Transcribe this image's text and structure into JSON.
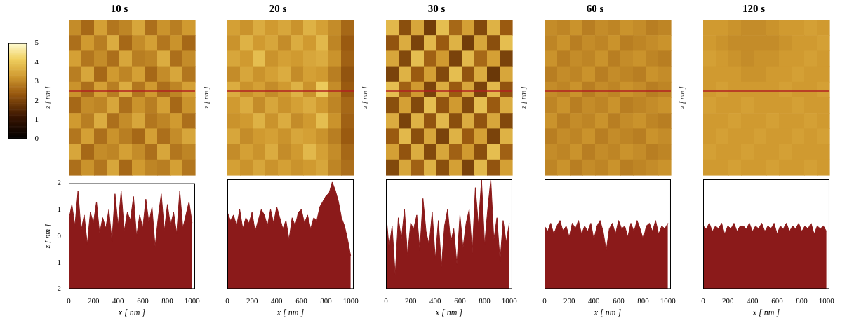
{
  "chart_data": [
    {
      "type": "heatmap",
      "title": "10 s",
      "y_label": "z [ nm ]",
      "tick_labels": false,
      "profile_row": 4.6,
      "color": "#b22222",
      "colorbar": {
        "range": [
          0,
          5
        ],
        "ticks": [
          0,
          1,
          2,
          3,
          4,
          5
        ]
      },
      "cells": [
        [
          3.1,
          2.6,
          3.4,
          2.8,
          3.0,
          3.5,
          2.7,
          3.2,
          2.9,
          3.3
        ],
        [
          2.7,
          3.3,
          2.9,
          3.6,
          2.6,
          3.1,
          3.4,
          2.8,
          3.2,
          2.6
        ],
        [
          3.4,
          2.8,
          3.1,
          2.7,
          3.5,
          2.9,
          3.0,
          3.6,
          2.7,
          3.1
        ],
        [
          2.9,
          3.5,
          2.6,
          3.3,
          3.0,
          3.4,
          2.6,
          3.1,
          3.5,
          2.8
        ],
        [
          3.2,
          2.7,
          3.4,
          2.9,
          3.6,
          2.8,
          3.3,
          2.7,
          3.0,
          3.4
        ],
        [
          2.6,
          3.1,
          3.0,
          3.5,
          2.7,
          3.2,
          2.9,
          3.4,
          2.6,
          3.2
        ],
        [
          3.3,
          2.9,
          3.6,
          2.7,
          3.1,
          3.5,
          2.8,
          3.0,
          3.3,
          2.7
        ],
        [
          2.8,
          3.4,
          2.7,
          3.2,
          2.9,
          2.6,
          3.4,
          2.7,
          3.1,
          3.5
        ],
        [
          3.5,
          2.6,
          3.1,
          3.0,
          3.4,
          3.1,
          2.7,
          3.5,
          2.8,
          3.0
        ],
        [
          2.7,
          3.2,
          2.8,
          3.5,
          2.6,
          3.3,
          3.0,
          2.9,
          3.4,
          2.8
        ]
      ]
    },
    {
      "type": "heatmap",
      "title": "20 s",
      "y_label": "z [ nm ]",
      "tick_labels": false,
      "profile_row": 4.6,
      "color": "#b22222",
      "cells": [
        [
          3.4,
          3.2,
          3.6,
          3.3,
          3.5,
          3.2,
          3.7,
          3.4,
          3.1,
          2.6
        ],
        [
          3.2,
          3.7,
          3.3,
          3.5,
          3.1,
          3.6,
          3.3,
          3.8,
          3.0,
          2.4
        ],
        [
          3.5,
          3.3,
          3.9,
          3.2,
          3.4,
          3.3,
          3.5,
          3.6,
          3.2,
          2.5
        ],
        [
          3.1,
          3.5,
          3.2,
          3.4,
          3.6,
          3.1,
          3.4,
          3.3,
          2.9,
          2.3
        ],
        [
          3.6,
          3.2,
          3.4,
          3.1,
          3.3,
          3.7,
          3.2,
          4.1,
          3.1,
          2.4
        ],
        [
          3.3,
          3.6,
          3.1,
          3.5,
          3.2,
          3.4,
          3.6,
          3.3,
          3.0,
          2.6
        ],
        [
          3.2,
          3.3,
          3.7,
          3.2,
          3.6,
          3.1,
          3.3,
          3.9,
          3.2,
          2.5
        ],
        [
          3.5,
          3.1,
          3.3,
          3.4,
          3.2,
          3.5,
          3.4,
          3.2,
          2.9,
          2.4
        ],
        [
          3.1,
          3.4,
          3.2,
          3.6,
          3.1,
          3.3,
          3.8,
          3.4,
          3.1,
          2.6
        ],
        [
          3.4,
          3.2,
          3.5,
          3.2,
          3.4,
          3.2,
          3.3,
          3.5,
          3.0,
          2.7
        ]
      ]
    },
    {
      "type": "heatmap",
      "title": "30 s",
      "y_label": "z [ nm ]",
      "tick_labels": false,
      "profile_row": 4.6,
      "color": "#b22222",
      "cells": [
        [
          3.8,
          2.2,
          3.5,
          1.9,
          3.9,
          2.6,
          3.4,
          2.1,
          3.7,
          2.4
        ],
        [
          2.3,
          3.6,
          2.0,
          3.8,
          2.4,
          3.7,
          1.9,
          3.5,
          2.2,
          3.9
        ],
        [
          3.5,
          2.1,
          3.9,
          2.5,
          3.3,
          2.0,
          3.8,
          2.6,
          3.4,
          2.0
        ],
        [
          2.0,
          3.7,
          2.4,
          3.4,
          2.1,
          3.9,
          2.3,
          3.6,
          1.8,
          3.5
        ],
        [
          3.9,
          2.5,
          3.3,
          2.0,
          3.6,
          2.4,
          3.5,
          2.0,
          3.8,
          2.3
        ],
        [
          2.2,
          3.4,
          2.1,
          3.9,
          2.3,
          3.3,
          2.1,
          3.9,
          2.4,
          3.6
        ],
        [
          3.6,
          2.0,
          3.7,
          2.3,
          3.8,
          2.2,
          3.6,
          2.3,
          3.5,
          2.1
        ],
        [
          2.4,
          3.8,
          2.2,
          3.5,
          2.0,
          3.7,
          2.4,
          3.4,
          2.0,
          3.7
        ],
        [
          3.4,
          2.3,
          3.6,
          2.1,
          3.5,
          2.5,
          3.3,
          2.2,
          3.9,
          2.5
        ],
        [
          2.1,
          3.5,
          2.5,
          3.7,
          2.2,
          3.4,
          2.0,
          3.8,
          2.3,
          3.4
        ]
      ]
    },
    {
      "type": "heatmap",
      "title": "60 s",
      "y_label": "z [ nm ]",
      "tick_labels": false,
      "profile_row": 4.6,
      "color": "#b22222",
      "cells": [
        [
          3.1,
          3.0,
          3.2,
          2.9,
          3.1,
          3.0,
          3.2,
          3.1,
          2.9,
          3.0
        ],
        [
          3.0,
          3.2,
          2.9,
          3.1,
          3.0,
          3.2,
          2.9,
          3.0,
          3.1,
          3.2
        ],
        [
          3.2,
          2.9,
          3.1,
          3.0,
          3.2,
          2.9,
          3.1,
          3.2,
          3.0,
          2.9
        ],
        [
          2.9,
          3.1,
          3.0,
          3.2,
          2.9,
          3.1,
          3.0,
          2.9,
          3.2,
          3.1
        ],
        [
          3.1,
          3.0,
          3.2,
          2.9,
          3.1,
          3.0,
          3.2,
          3.1,
          2.9,
          3.0
        ],
        [
          3.0,
          3.2,
          2.9,
          3.1,
          3.0,
          3.2,
          2.9,
          3.0,
          3.1,
          3.2
        ],
        [
          3.2,
          2.9,
          3.1,
          3.0,
          3.2,
          2.9,
          3.1,
          3.2,
          3.0,
          2.9
        ],
        [
          2.9,
          3.1,
          3.0,
          3.2,
          2.9,
          3.1,
          3.0,
          2.9,
          3.2,
          3.1
        ],
        [
          3.1,
          3.0,
          3.2,
          2.9,
          3.1,
          3.0,
          3.2,
          3.1,
          2.9,
          3.0
        ],
        [
          3.0,
          3.2,
          2.9,
          3.1,
          3.0,
          3.2,
          2.9,
          3.0,
          3.1,
          3.2
        ]
      ]
    },
    {
      "type": "heatmap",
      "title": "120 s",
      "y_label": "z [ nm ]",
      "tick_labels": false,
      "profile_row": 4.6,
      "color": "#b22222",
      "cells": [
        [
          3.3,
          3.3,
          3.2,
          3.1,
          3.1,
          3.2,
          3.3,
          3.3,
          3.4,
          3.3
        ],
        [
          3.3,
          3.2,
          3.1,
          3.1,
          3.1,
          3.1,
          3.2,
          3.3,
          3.3,
          3.4
        ],
        [
          3.4,
          3.3,
          3.2,
          3.1,
          3.2,
          3.2,
          3.3,
          3.3,
          3.4,
          3.3
        ],
        [
          3.3,
          3.3,
          3.3,
          3.2,
          3.2,
          3.3,
          3.3,
          3.4,
          3.3,
          3.3
        ],
        [
          3.3,
          3.4,
          3.3,
          3.3,
          3.3,
          3.3,
          3.4,
          3.3,
          3.3,
          3.4
        ],
        [
          3.4,
          3.3,
          3.3,
          3.4,
          3.3,
          3.3,
          3.3,
          3.4,
          3.3,
          3.3
        ],
        [
          3.3,
          3.3,
          3.4,
          3.3,
          3.3,
          3.4,
          3.3,
          3.3,
          3.4,
          3.3
        ],
        [
          3.3,
          3.4,
          3.3,
          3.3,
          3.4,
          3.3,
          3.3,
          3.4,
          3.3,
          3.4
        ],
        [
          3.4,
          3.3,
          3.3,
          3.4,
          3.3,
          3.3,
          3.4,
          3.3,
          3.3,
          3.3
        ],
        [
          3.3,
          3.3,
          3.4,
          3.3,
          3.3,
          3.4,
          3.3,
          3.3,
          3.4,
          3.3
        ]
      ]
    },
    {
      "type": "area",
      "color": "#8b1a1a",
      "grid": false,
      "tick_labels": true,
      "x_label": "x [ nm ]",
      "y_label": "z [ nm ]",
      "xlim": [
        0,
        1024
      ],
      "xticks": [
        0,
        200,
        400,
        600,
        800,
        1000
      ],
      "ylim": [
        -2,
        2
      ],
      "yticks": [
        -2,
        -1,
        0,
        1,
        2
      ],
      "x": [
        0,
        25,
        50,
        75,
        100,
        125,
        150,
        175,
        200,
        225,
        250,
        275,
        300,
        325,
        350,
        375,
        400,
        425,
        450,
        475,
        500,
        525,
        550,
        575,
        600,
        625,
        650,
        675,
        700,
        725,
        750,
        775,
        800,
        825,
        850,
        875,
        900,
        925,
        950,
        975,
        1000
      ],
      "values": [
        0.6,
        1.2,
        0.4,
        1.7,
        0.2,
        0.8,
        -0.3,
        0.9,
        0.5,
        1.3,
        0.1,
        0.7,
        0.3,
        1.0,
        -0.2,
        1.6,
        0.4,
        1.7,
        0.2,
        0.9,
        0.6,
        1.5,
        0.0,
        0.8,
        0.3,
        1.4,
        0.5,
        1.1,
        -0.4,
        0.7,
        1.6,
        0.2,
        1.2,
        0.4,
        0.9,
        0.1,
        1.7,
        0.3,
        0.8,
        1.3,
        0.5
      ]
    },
    {
      "type": "area",
      "color": "#8b1a1a",
      "grid": false,
      "tick_labels": "x",
      "x_label": "x [ nm ]",
      "xlim": [
        0,
        1024
      ],
      "xticks": [
        0,
        200,
        400,
        600,
        800,
        1000
      ],
      "ylim": [
        -2,
        2
      ],
      "yticks": [
        -2,
        -1,
        0,
        1,
        2
      ],
      "x": [
        0,
        25,
        50,
        75,
        100,
        125,
        150,
        175,
        200,
        225,
        250,
        275,
        300,
        325,
        350,
        375,
        400,
        425,
        450,
        475,
        500,
        525,
        550,
        575,
        600,
        625,
        650,
        675,
        700,
        725,
        750,
        775,
        800,
        825,
        850,
        875,
        900,
        925,
        950,
        975,
        1000
      ],
      "values": [
        0.8,
        0.5,
        0.7,
        0.3,
        0.9,
        0.2,
        0.6,
        0.4,
        0.8,
        0.1,
        0.5,
        0.9,
        0.7,
        0.3,
        0.9,
        0.4,
        1.0,
        0.6,
        0.2,
        0.5,
        -0.2,
        0.6,
        0.3,
        0.8,
        0.9,
        0.4,
        0.7,
        0.2,
        0.6,
        0.5,
        1.0,
        1.2,
        1.4,
        1.5,
        1.9,
        1.6,
        1.2,
        0.6,
        0.3,
        -0.2,
        -0.8
      ]
    },
    {
      "type": "area",
      "color": "#8b1a1a",
      "grid": false,
      "tick_labels": "x",
      "x_label": "x [ nm ]",
      "xlim": [
        0,
        1024
      ],
      "xticks": [
        0,
        200,
        400,
        600,
        800,
        1000
      ],
      "ylim": [
        -2,
        2
      ],
      "yticks": [
        -2,
        -1,
        0,
        1,
        2
      ],
      "x": [
        0,
        25,
        50,
        75,
        100,
        125,
        150,
        175,
        200,
        225,
        250,
        275,
        300,
        325,
        350,
        375,
        400,
        425,
        450,
        475,
        500,
        525,
        550,
        575,
        600,
        625,
        650,
        675,
        700,
        725,
        750,
        775,
        800,
        825,
        850,
        875,
        900,
        925,
        950,
        975,
        1000
      ],
      "values": [
        0.8,
        -0.5,
        0.3,
        -1.5,
        0.6,
        -0.2,
        0.9,
        -0.8,
        0.4,
        0.2,
        0.7,
        -0.6,
        1.3,
        0.1,
        -0.4,
        0.8,
        -0.9,
        0.5,
        -1.2,
        0.3,
        0.9,
        -0.3,
        0.2,
        -1.1,
        0.7,
        -0.5,
        0.4,
        0.9,
        -0.7,
        1.7,
        0.3,
        2.0,
        -0.4,
        0.9,
        2.0,
        -0.2,
        0.6,
        -1.0,
        0.5,
        -0.3,
        0.4
      ]
    },
    {
      "type": "area",
      "color": "#8b1a1a",
      "grid": false,
      "tick_labels": "x",
      "x_label": "x [ nm ]",
      "xlim": [
        0,
        1024
      ],
      "xticks": [
        0,
        200,
        400,
        600,
        800,
        1000
      ],
      "ylim": [
        -2,
        2
      ],
      "yticks": [
        -2,
        -1,
        0,
        1,
        2
      ],
      "x": [
        0,
        25,
        50,
        75,
        100,
        125,
        150,
        175,
        200,
        225,
        250,
        275,
        300,
        325,
        350,
        375,
        400,
        425,
        450,
        475,
        500,
        525,
        550,
        575,
        600,
        625,
        650,
        675,
        700,
        725,
        750,
        775,
        800,
        825,
        850,
        875,
        900,
        925,
        950,
        975,
        1000
      ],
      "values": [
        0.3,
        0.1,
        0.4,
        0.0,
        0.3,
        0.5,
        0.1,
        0.3,
        -0.1,
        0.4,
        0.2,
        0.5,
        0.0,
        0.3,
        0.1,
        0.4,
        -0.2,
        0.3,
        0.5,
        0.1,
        -0.6,
        0.2,
        0.4,
        0.0,
        0.5,
        0.2,
        0.3,
        -0.1,
        0.4,
        0.1,
        0.5,
        0.2,
        -0.2,
        0.3,
        0.4,
        0.1,
        0.5,
        0.0,
        0.3,
        0.2,
        0.4
      ]
    },
    {
      "type": "area",
      "color": "#8b1a1a",
      "grid": false,
      "tick_labels": "x",
      "x_label": "x [ nm ]",
      "xlim": [
        0,
        1024
      ],
      "xticks": [
        0,
        200,
        400,
        600,
        800,
        1000
      ],
      "ylim": [
        -2,
        2
      ],
      "yticks": [
        -2,
        -1,
        0,
        1,
        2
      ],
      "x": [
        0,
        25,
        50,
        75,
        100,
        125,
        150,
        175,
        200,
        225,
        250,
        275,
        300,
        325,
        350,
        375,
        400,
        425,
        450,
        475,
        500,
        525,
        550,
        575,
        600,
        625,
        650,
        675,
        700,
        725,
        750,
        775,
        800,
        825,
        850,
        875,
        900,
        925,
        950,
        975,
        1000
      ],
      "values": [
        0.3,
        0.2,
        0.4,
        0.1,
        0.3,
        0.2,
        0.4,
        0.0,
        0.3,
        0.2,
        0.4,
        0.1,
        0.3,
        0.3,
        0.2,
        0.4,
        0.1,
        0.3,
        0.2,
        0.4,
        0.1,
        0.3,
        0.2,
        0.4,
        0.0,
        0.3,
        0.2,
        0.4,
        0.1,
        0.3,
        0.2,
        0.4,
        0.1,
        0.3,
        0.2,
        0.4,
        0.0,
        0.3,
        0.2,
        0.3,
        0.1
      ]
    }
  ]
}
